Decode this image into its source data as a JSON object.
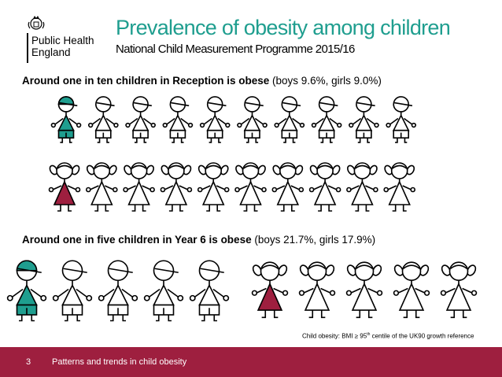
{
  "logo": {
    "line1": "Public Health",
    "line2": "England"
  },
  "header": {
    "title": "Prevalence of obesity among children",
    "subtitle": "National Child Measurement Programme 2015/16"
  },
  "reception": {
    "caption_bold": "Around one in ten children in Reception is obese",
    "caption_rest": " (boys 9.6%, girls 9.0%)",
    "boys_highlighted": 1,
    "boys_total": 10,
    "girls_highlighted": 1,
    "girls_total": 10
  },
  "year6": {
    "caption_bold": "Around one in five children in Year 6 is obese",
    "caption_rest": " (boys 21.7%, girls 17.9%)",
    "boys_highlighted": 1,
    "boys_total": 5,
    "girls_highlighted": 1,
    "girls_total": 5
  },
  "footnote": {
    "before": "Child obesity: BMI ≥ 95",
    "sup": "th",
    "after": " centile of the UK90 growth reference"
  },
  "footer": {
    "page_number": "3",
    "text": "Patterns and trends in child obesity"
  },
  "colors": {
    "boy_highlight": "#1f9e8f",
    "girl_highlight": "#9e1f3f",
    "footer_bg": "#9e1f3f",
    "title": "#1f9e8f"
  }
}
